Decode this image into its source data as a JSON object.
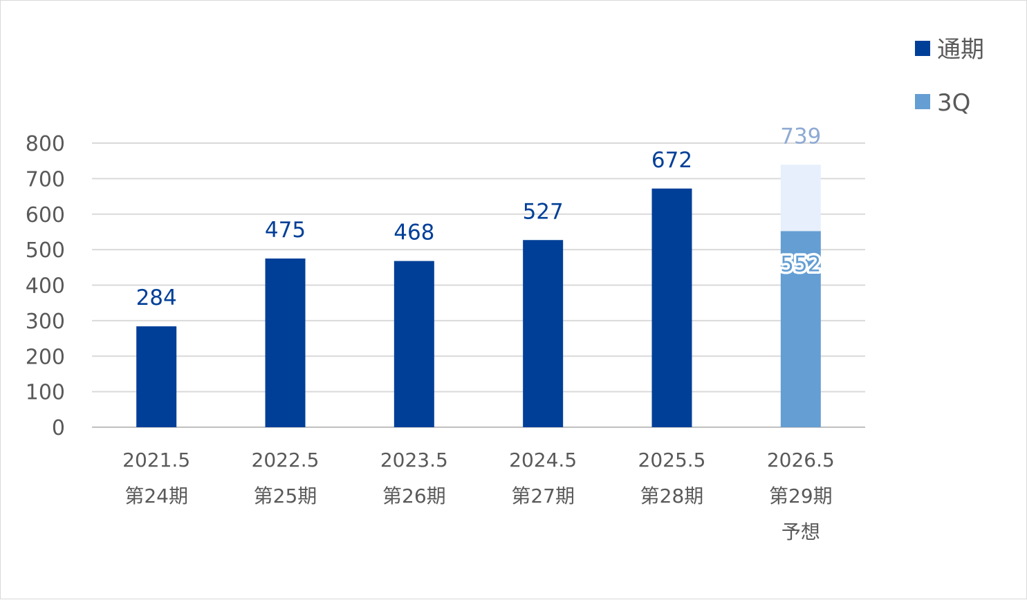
{
  "chart_data": {
    "type": "bar",
    "categories": [
      [
        "2021.5",
        "第24期"
      ],
      [
        "2022.5",
        "第25期"
      ],
      [
        "2023.5",
        "第26期"
      ],
      [
        "2024.5",
        "第27期"
      ],
      [
        "2025.5",
        "第28期"
      ],
      [
        "2026.5",
        "第29期",
        "予想"
      ]
    ],
    "series": [
      {
        "name": "通期",
        "values": [
          284,
          475,
          468,
          527,
          672,
          739
        ],
        "color": "#003f98",
        "forecast_color": "#e6effb",
        "forecast_label_color": "#8eaad3"
      },
      {
        "name": "3Q",
        "values": [
          null,
          null,
          null,
          null,
          null,
          552
        ],
        "color": "#649ed3",
        "label_color": "#649ed3"
      }
    ],
    "y_ticks": [
      "0",
      "100",
      "200",
      "300",
      "400",
      "500",
      "600",
      "700",
      "800"
    ],
    "ylim": [
      0,
      800
    ],
    "grid": true,
    "legend_position": "top-right",
    "title": "",
    "xlabel": "",
    "ylabel": ""
  }
}
